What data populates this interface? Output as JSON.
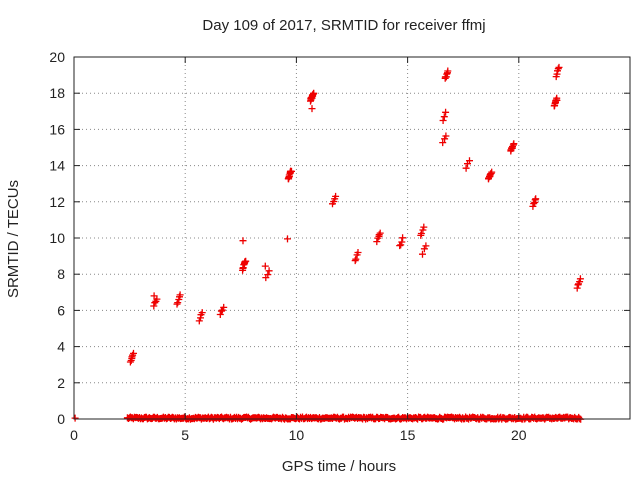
{
  "chart_data": {
    "type": "scatter",
    "title": "Day 109 of 2017, SRMTID for receiver ffmj",
    "xlabel": "GPS time / hours",
    "ylabel": "SRMTID / TECUs",
    "xlim": [
      0,
      25
    ],
    "ylim": [
      0,
      20
    ],
    "xticks": [
      0,
      5,
      10,
      15,
      20
    ],
    "yticks": [
      0,
      2,
      4,
      6,
      8,
      10,
      12,
      14,
      16,
      18,
      20
    ],
    "grid": true,
    "marker": "+",
    "color": "#ee0000",
    "baseline_series": {
      "x_start": 2.4,
      "x_end": 22.8,
      "y": 0.05,
      "note": "dense run of near-zero values"
    },
    "x_origin_point": [
      0.05,
      0.05
    ],
    "clusters": [
      {
        "x": 2.6,
        "y": 3.4,
        "n": 6
      },
      {
        "x": 3.65,
        "y": 6.45,
        "n": 4
      },
      {
        "x": 4.7,
        "y": 6.6,
        "n": 5
      },
      {
        "x": 5.7,
        "y": 5.7,
        "n": 4
      },
      {
        "x": 6.65,
        "y": 6.0,
        "n": 4
      },
      {
        "x": 7.65,
        "y": 8.5,
        "n": 8
      },
      {
        "x": 8.7,
        "y": 8.0,
        "n": 3
      },
      {
        "x": 9.7,
        "y": 13.5,
        "n": 10
      },
      {
        "x": 10.7,
        "y": 17.8,
        "n": 12
      },
      {
        "x": 11.7,
        "y": 12.1,
        "n": 4
      },
      {
        "x": 12.7,
        "y": 8.95,
        "n": 4
      },
      {
        "x": 13.7,
        "y": 10.05,
        "n": 5
      },
      {
        "x": 14.7,
        "y": 9.75,
        "n": 4
      },
      {
        "x": 15.65,
        "y": 10.35,
        "n": 4
      },
      {
        "x": 15.75,
        "y": 9.35,
        "n": 3
      },
      {
        "x": 16.65,
        "y": 15.45,
        "n": 3
      },
      {
        "x": 16.65,
        "y": 16.7,
        "n": 3
      },
      {
        "x": 16.75,
        "y": 19.0,
        "n": 6
      },
      {
        "x": 17.7,
        "y": 14.1,
        "n": 3
      },
      {
        "x": 18.7,
        "y": 13.45,
        "n": 8
      },
      {
        "x": 19.7,
        "y": 15.0,
        "n": 8
      },
      {
        "x": 20.7,
        "y": 12.0,
        "n": 5
      },
      {
        "x": 21.65,
        "y": 17.5,
        "n": 8
      },
      {
        "x": 21.75,
        "y": 19.2,
        "n": 5
      },
      {
        "x": 22.7,
        "y": 7.5,
        "n": 5
      }
    ],
    "outliers": [
      {
        "x": 3.6,
        "y": 6.8
      },
      {
        "x": 7.6,
        "y": 9.85
      },
      {
        "x": 8.6,
        "y": 8.45
      },
      {
        "x": 9.6,
        "y": 9.95
      },
      {
        "x": 10.7,
        "y": 17.15
      },
      {
        "x": 21.6,
        "y": 17.3
      }
    ]
  }
}
